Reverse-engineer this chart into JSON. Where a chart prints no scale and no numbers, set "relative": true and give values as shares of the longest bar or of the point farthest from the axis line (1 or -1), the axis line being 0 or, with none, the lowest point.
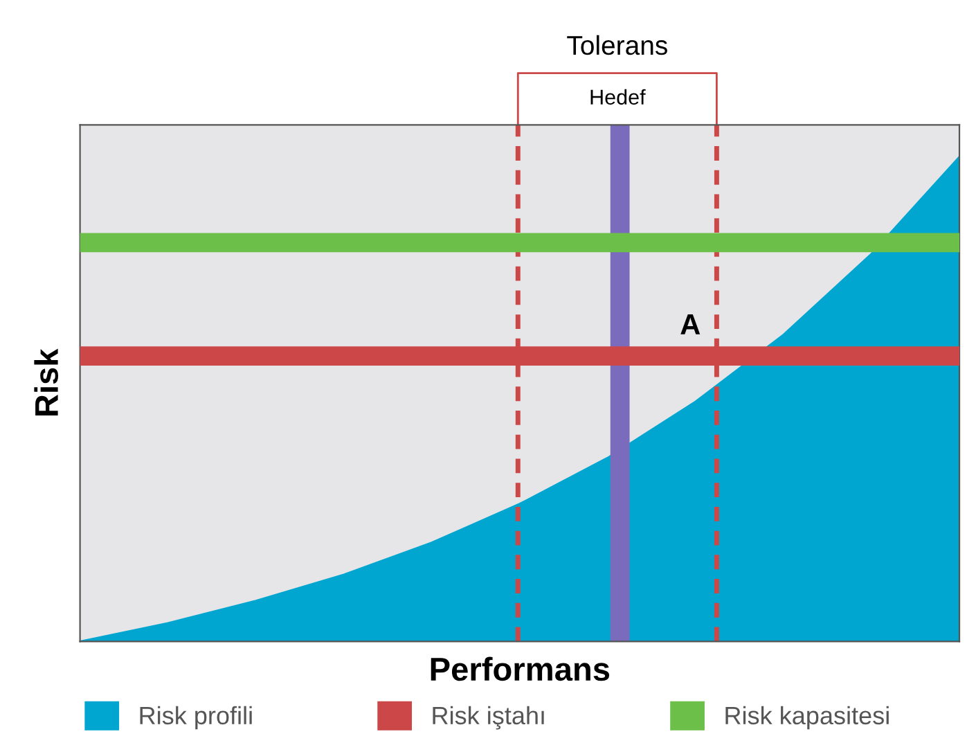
{
  "chart_data": {
    "type": "area",
    "relative": true,
    "xlabel": "Performans",
    "ylabel": "Risk",
    "categories": [
      null,
      null,
      null,
      null,
      null,
      null,
      null,
      null,
      null,
      null,
      null
    ],
    "tick_labels": false,
    "series": [
      {
        "name": "Risk profili",
        "color": "#00a6d0",
        "values": [
          0,
          0.038,
          0.084,
          0.138,
          0.204,
          0.284,
          0.379,
          0.495,
          0.633,
          0.8,
          1
        ]
      }
    ],
    "ref_lines": [
      {
        "axis": "y",
        "value": 0.589,
        "label": "Risk iştahı",
        "color": "#cc4848"
      },
      {
        "axis": "y",
        "value": 0.823,
        "label": "Risk kapasitesi",
        "color": "#6cc04a"
      }
    ],
    "annotations": [
      "Tolerans",
      "Hedef",
      "A"
    ],
    "legend": "bottom"
  }
}
